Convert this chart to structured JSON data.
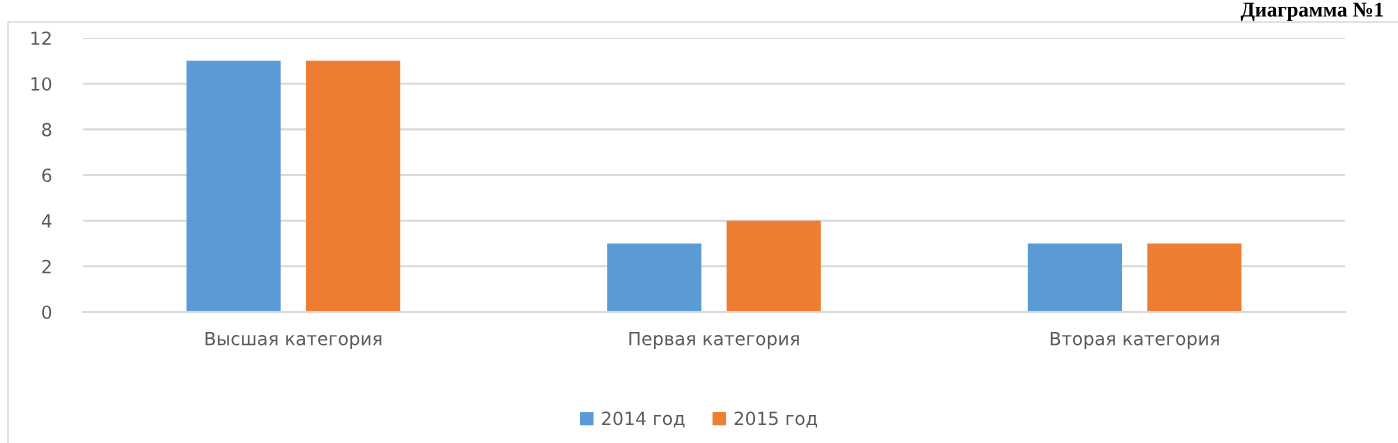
{
  "chart_data": {
    "type": "bar",
    "title": "Диаграмма №1",
    "categories": [
      "Высшая категория",
      "Первая категория",
      "Вторая категория"
    ],
    "series": [
      {
        "name": "2014 год",
        "color": "#5b9bd5",
        "values": [
          11,
          3,
          3
        ]
      },
      {
        "name": "2015 год",
        "color": "#ed7d31",
        "values": [
          11,
          4,
          3
        ]
      }
    ],
    "ylim": [
      0,
      12
    ],
    "yticks": [
      0,
      2,
      4,
      6,
      8,
      10,
      12
    ],
    "grid": "y",
    "legend": "bottom"
  }
}
